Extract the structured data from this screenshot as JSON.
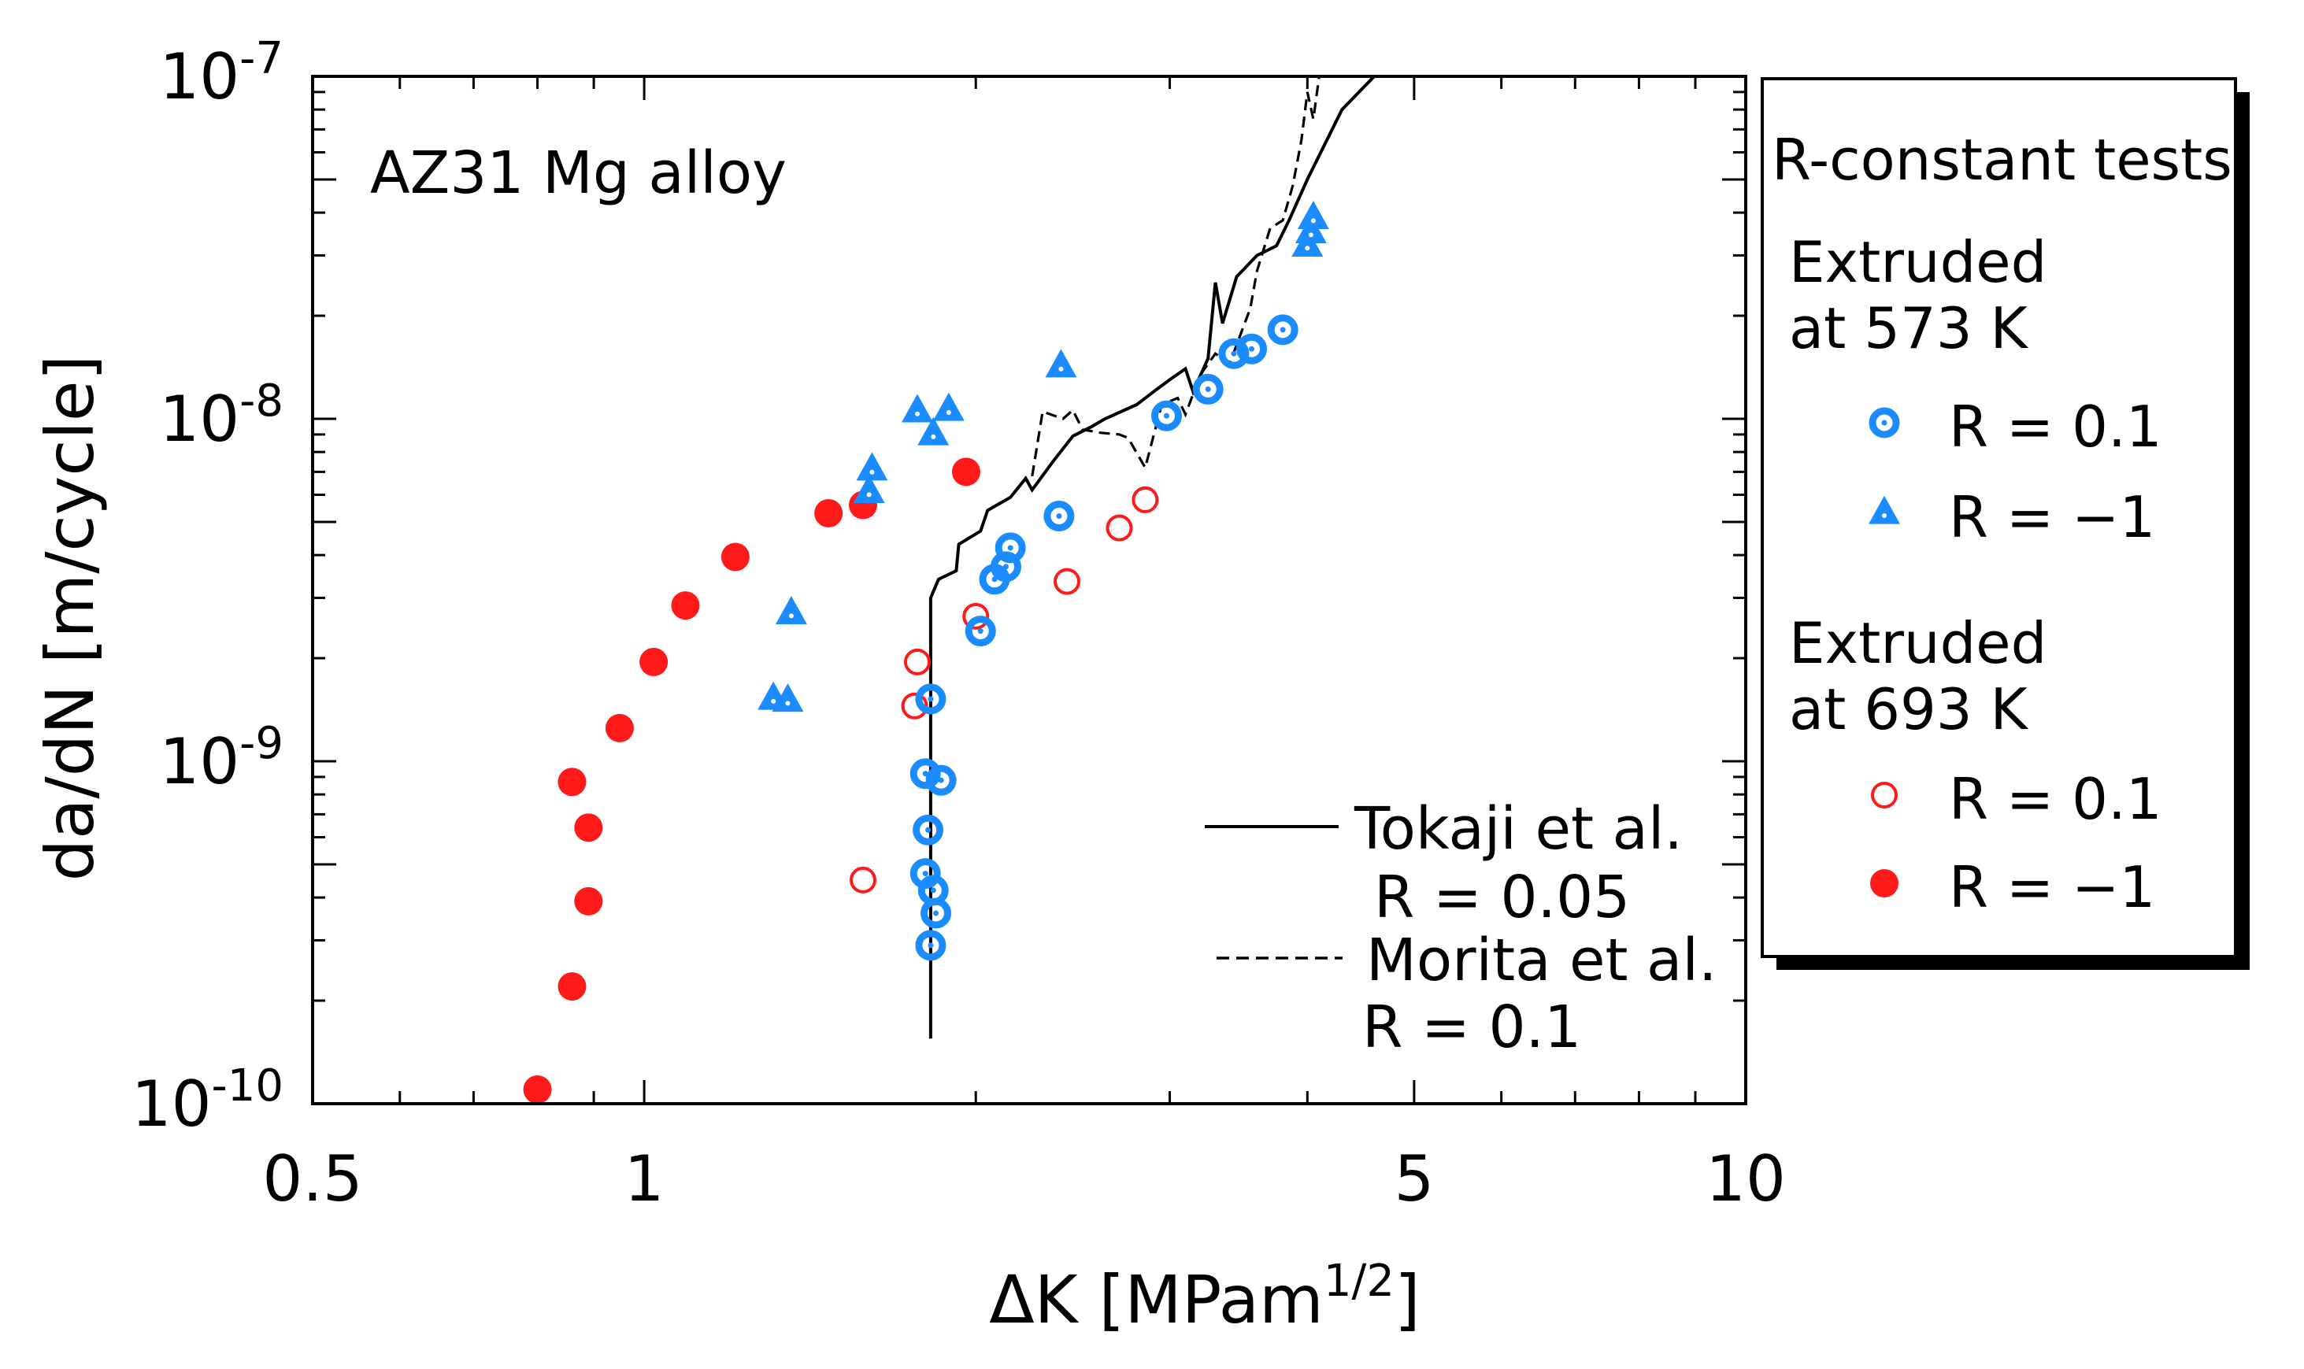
{
  "chart_data": {
    "type": "scatter",
    "x_scale": "log",
    "y_scale": "log",
    "xlim": [
      0.5,
      10
    ],
    "ylim": [
      1e-10,
      1e-07
    ],
    "xlabel": "ΔK [MPam",
    "xlabel_sup": "1/2",
    "xlabel_end": "]",
    "ylabel": "da/dN [m/cycle]",
    "x_ticks": [
      {
        "value": 0.5,
        "label": "0.5"
      },
      {
        "value": 1,
        "label": "1"
      },
      {
        "value": 5,
        "label": "5"
      },
      {
        "value": 10,
        "label": "10"
      }
    ],
    "y_ticks": [
      {
        "value": 1e-10,
        "base": "10",
        "exp": "-10"
      },
      {
        "value": 1e-09,
        "base": "10",
        "exp": "-9"
      },
      {
        "value": 1e-08,
        "base": "10",
        "exp": "-8"
      },
      {
        "value": 1e-07,
        "base": "10",
        "exp": "-7"
      }
    ],
    "annotation": "AZ31 Mg alloy",
    "legend": {
      "title": "R-constant tests",
      "group1_line1": "Extruded",
      "group1_line2": "at 573 K",
      "group2_line1": "Extruded",
      "group2_line2": "at 693 K",
      "entries": [
        {
          "series": 0,
          "label": "R = 0.1"
        },
        {
          "series": 1,
          "label": "R = −1"
        },
        {
          "series": 2,
          "label": "R = 0.1"
        },
        {
          "series": 3,
          "label": "R = −1"
        }
      ]
    },
    "line_legend": {
      "line1_name": "Tokaji et al.",
      "line1_r": "R = 0.05",
      "line2_name": "Morita et al.",
      "line2_r": "R = 0.1"
    },
    "colors": {
      "blue": "#1a8cff",
      "red": "#ff1a1a"
    },
    "series": [
      {
        "label": "R = 0.1",
        "group": "573 K",
        "marker": "bullseye",
        "color": "#1a8cff",
        "points": [
          [
            1.82,
            2.9e-10
          ],
          [
            1.84,
            3.6e-10
          ],
          [
            1.83,
            4.2e-10
          ],
          [
            1.8,
            4.7e-10
          ],
          [
            1.81,
            6.3e-10
          ],
          [
            1.86,
            8.8e-10
          ],
          [
            1.8,
            9.2e-10
          ],
          [
            1.82,
            1.52e-09
          ],
          [
            2.02,
            2.4e-09
          ],
          [
            2.08,
            3.4e-09
          ],
          [
            2.13,
            3.7e-09
          ],
          [
            2.15,
            4.2e-09
          ],
          [
            2.38,
            5.2e-09
          ],
          [
            2.98,
            1.02e-08
          ],
          [
            3.25,
            1.22e-08
          ],
          [
            3.43,
            1.55e-08
          ],
          [
            3.56,
            1.6e-08
          ],
          [
            3.8,
            1.82e-08
          ]
        ]
      },
      {
        "label": "R = −1",
        "group": "573 K",
        "marker": "triangle",
        "color": "#1a8cff",
        "points": [
          [
            1.31,
            1.52e-09
          ],
          [
            1.35,
            1.5e-09
          ],
          [
            1.36,
            2.7e-09
          ],
          [
            1.6,
            6.1e-09
          ],
          [
            1.61,
            7.1e-09
          ],
          [
            1.77,
            1.05e-08
          ],
          [
            1.83,
            9e-09
          ],
          [
            1.89,
            1.06e-08
          ],
          [
            2.39,
            1.42e-08
          ],
          [
            4.0,
            3.2e-08
          ],
          [
            4.03,
            3.5e-08
          ],
          [
            4.05,
            3.85e-08
          ]
        ]
      },
      {
        "label": "R = 0.1",
        "group": "693 K",
        "marker": "open-circle",
        "color": "#ff1a1a",
        "points": [
          [
            1.58,
            4.5e-10
          ],
          [
            1.76,
            1.45e-09
          ],
          [
            1.77,
            1.95e-09
          ],
          [
            2.0,
            2.65e-09
          ],
          [
            2.42,
            3.35e-09
          ],
          [
            2.7,
            4.8e-09
          ],
          [
            2.85,
            5.8e-09
          ]
        ]
      },
      {
        "label": "R = −1",
        "group": "693 K",
        "marker": "filled-circle",
        "color": "#ff1a1a",
        "points": [
          [
            0.8,
            1.1e-10
          ],
          [
            0.86,
            2.2e-10
          ],
          [
            0.89,
            3.9e-10
          ],
          [
            0.89,
            6.4e-10
          ],
          [
            0.86,
            8.7e-10
          ],
          [
            0.95,
            1.25e-09
          ],
          [
            1.02,
            1.95e-09
          ],
          [
            1.09,
            2.85e-09
          ],
          [
            1.21,
            3.95e-09
          ],
          [
            1.47,
            5.3e-09
          ],
          [
            1.58,
            5.6e-09
          ],
          [
            1.96,
            7e-09
          ]
        ]
      }
    ],
    "lines": [
      {
        "label": "Tokaji et al.",
        "style": "solid",
        "points": [
          [
            1.82,
            1.55e-10
          ],
          [
            1.82,
            1e-09
          ],
          [
            1.82,
            3e-09
          ],
          [
            1.85,
            3.4e-09
          ],
          [
            1.92,
            3.6e-09
          ],
          [
            1.93,
            4.3e-09
          ],
          [
            2.02,
            4.7e-09
          ],
          [
            2.05,
            5.4e-09
          ],
          [
            2.15,
            5.9e-09
          ],
          [
            2.22,
            6.7e-09
          ],
          [
            2.25,
            6.2e-09
          ],
          [
            2.35,
            7.5e-09
          ],
          [
            2.45,
            8.9e-09
          ],
          [
            2.55,
            9.5e-09
          ],
          [
            2.62,
            1e-08
          ],
          [
            2.8,
            1.1e-08
          ],
          [
            2.9,
            1.2e-08
          ],
          [
            3.0,
            1.3e-08
          ],
          [
            3.1,
            1.4e-08
          ],
          [
            3.15,
            1.2e-08
          ],
          [
            3.25,
            1.5e-08
          ],
          [
            3.3,
            2.5e-08
          ],
          [
            3.35,
            1.9e-08
          ],
          [
            3.45,
            2.6e-08
          ],
          [
            3.6,
            3e-08
          ],
          [
            3.75,
            3.2e-08
          ],
          [
            3.85,
            3.8e-08
          ],
          [
            4.0,
            5e-08
          ],
          [
            4.3,
            8e-08
          ],
          [
            4.6,
            1e-07
          ]
        ]
      },
      {
        "label": "Morita et al.",
        "style": "dashed",
        "points": [
          [
            2.25,
            6.8e-09
          ],
          [
            2.3,
            1.05e-08
          ],
          [
            2.4,
            1e-08
          ],
          [
            2.45,
            1.06e-08
          ],
          [
            2.5,
            9.3e-09
          ],
          [
            2.6,
            9.1e-09
          ],
          [
            2.7,
            9e-09
          ],
          [
            2.75,
            8.8e-09
          ],
          [
            2.85,
            7.2e-09
          ],
          [
            2.95,
            1.1e-08
          ],
          [
            3.05,
            1.15e-08
          ],
          [
            3.1,
            1.03e-08
          ],
          [
            3.2,
            1.35e-08
          ],
          [
            3.3,
            1.55e-08
          ],
          [
            3.4,
            1.45e-08
          ],
          [
            3.55,
            2.1e-08
          ],
          [
            3.6,
            2.7e-08
          ],
          [
            3.7,
            3.6e-08
          ],
          [
            3.8,
            3.8e-08
          ],
          [
            3.88,
            4.8e-08
          ],
          [
            3.95,
            6.5e-08
          ],
          [
            4.0,
            9e-08
          ],
          [
            4.05,
            7.5e-08
          ],
          [
            4.1,
            1e-07
          ]
        ]
      }
    ]
  }
}
